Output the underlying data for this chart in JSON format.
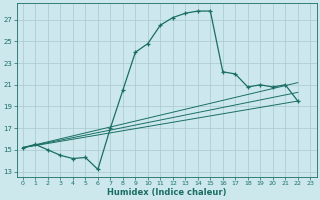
{
  "xlabel": "Humidex (Indice chaleur)",
  "bg_color": "#cce8ec",
  "grid_color": "#a8c8d0",
  "line_color": "#1a6e64",
  "xlim": [
    -0.5,
    23.5
  ],
  "ylim": [
    12.5,
    28.5
  ],
  "yticks": [
    13,
    15,
    17,
    19,
    21,
    23,
    25,
    27
  ],
  "xticks": [
    0,
    1,
    2,
    3,
    4,
    5,
    6,
    7,
    8,
    9,
    10,
    11,
    12,
    13,
    14,
    15,
    16,
    17,
    18,
    19,
    20,
    21,
    22,
    23
  ],
  "main_x": [
    0,
    1,
    2,
    3,
    4,
    5,
    6,
    7,
    8,
    9,
    10,
    11,
    12,
    13,
    14,
    15,
    16,
    17,
    18,
    19,
    20,
    21,
    22
  ],
  "main_y": [
    15.2,
    15.5,
    15.0,
    14.5,
    14.2,
    14.3,
    13.2,
    17.0,
    20.5,
    24.0,
    24.8,
    26.5,
    27.2,
    27.6,
    27.8,
    27.8,
    22.2,
    22.0,
    20.8,
    21.0,
    20.8,
    21.0,
    19.5
  ],
  "line1_x": [
    0,
    22
  ],
  "line1_y": [
    15.2,
    19.5
  ],
  "line2_x": [
    0,
    22
  ],
  "line2_y": [
    15.2,
    20.3
  ],
  "line3_x": [
    0,
    22
  ],
  "line3_y": [
    15.2,
    21.2
  ]
}
